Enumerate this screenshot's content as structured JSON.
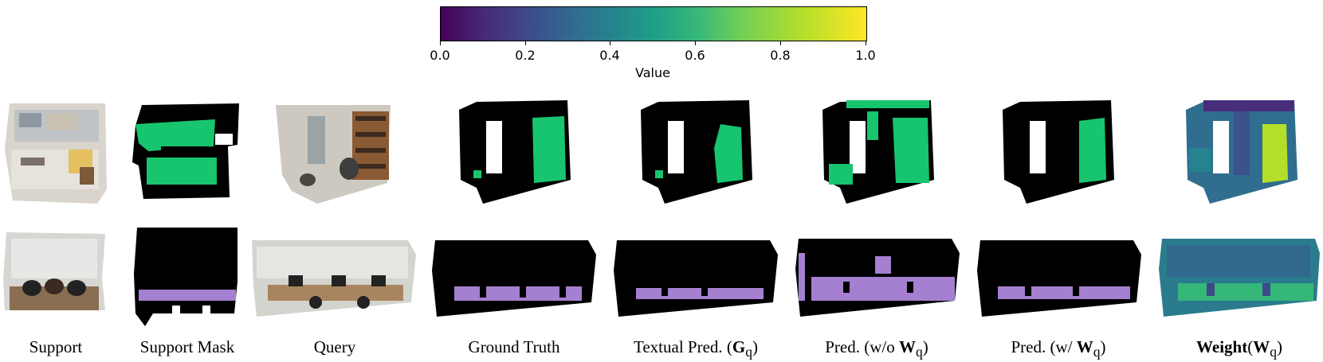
{
  "colorbar": {
    "ticks": [
      "0.0",
      "0.2",
      "0.4",
      "0.6",
      "0.8",
      "1.0"
    ],
    "title": "Value",
    "colors": [
      "#440154",
      "#3e4989",
      "#26828e",
      "#35b779",
      "#b5de2b",
      "#fde725"
    ]
  },
  "captions": {
    "support": "Support",
    "support_mask": "Support Mask",
    "query": "Query",
    "ground_truth": "Ground Truth",
    "textual_pred_prefix": "Textual Pred. (",
    "textual_pred_symbol": "G",
    "textual_pred_sub": "q",
    "textual_pred_suffix": ")",
    "pred_without_prefix": "Pred. (w/o ",
    "pred_without_symbol": "W",
    "pred_without_sub": "q",
    "pred_without_suffix": ")",
    "pred_with_prefix": "Pred. (w/ ",
    "pred_with_symbol": "W",
    "pred_with_sub": "q",
    "pred_with_suffix": ")",
    "weight_word": "Weight",
    "weight_prefix": "(",
    "weight_symbol": "W",
    "weight_sub": "q",
    "weight_suffix": ")"
  },
  "colors": {
    "mask_green": "#17c56e",
    "mask_purple": "#a57fd0",
    "point_black": "#000000"
  }
}
